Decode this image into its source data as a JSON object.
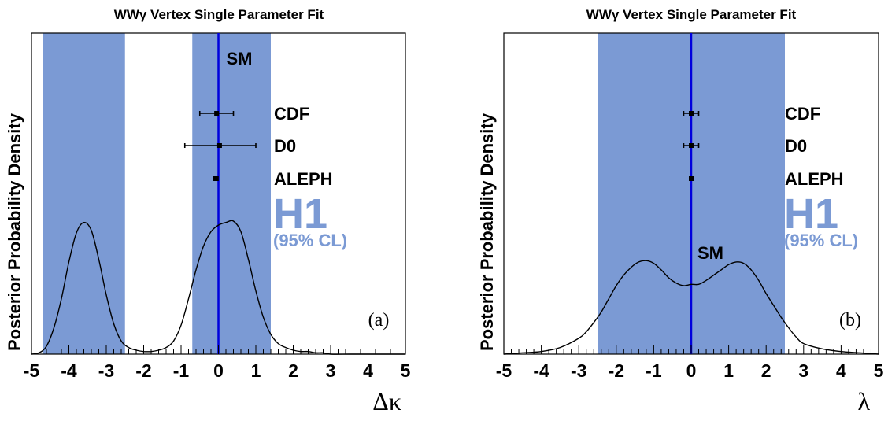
{
  "chart_data": [
    {
      "type": "line",
      "title": "WWγ Vertex Single Parameter Fit",
      "ylabel": "Posterior Probability Density",
      "xlabel": "Δκ",
      "panel_label": "(a)",
      "xlim": [
        -5,
        5
      ],
      "xticks": [
        "-5",
        "-4",
        "-3",
        "-2",
        "-1",
        "0",
        "1",
        "2",
        "3",
        "4",
        "5"
      ],
      "bands": [
        [
          -4.7,
          -2.5
        ],
        [
          -0.7,
          1.4
        ]
      ],
      "sm_label": "SM",
      "sm_x": 0,
      "sm_label_pos": "top",
      "band_label": "H1",
      "band_sublabel": "(95% CL)",
      "band_color": "#7b9ad4",
      "sm_line_color": "#0000dd",
      "measurements": [
        {
          "name": "CDF",
          "center": -0.05,
          "low": -0.5,
          "high": 0.4
        },
        {
          "name": "D0",
          "center": 0.03,
          "low": -0.9,
          "high": 1.0
        },
        {
          "name": "ALEPH",
          "center": -0.07,
          "low": -0.13,
          "high": -0.01
        }
      ],
      "curve": {
        "x": [
          -5.0,
          -4.8,
          -4.6,
          -4.4,
          -4.2,
          -4.0,
          -3.8,
          -3.6,
          -3.4,
          -3.2,
          -3.0,
          -2.8,
          -2.6,
          -2.4,
          -2.2,
          -2.0,
          -1.8,
          -1.6,
          -1.4,
          -1.2,
          -1.0,
          -0.8,
          -0.6,
          -0.4,
          -0.2,
          0.0,
          0.2,
          0.4,
          0.6,
          0.8,
          1.0,
          1.2,
          1.4,
          1.6,
          1.8,
          2.0,
          2.2,
          2.4,
          2.6,
          2.8,
          3.0,
          3.5,
          4.0,
          4.5,
          5.0
        ],
        "y": [
          0.0,
          0.01,
          0.06,
          0.2,
          0.42,
          0.7,
          0.92,
          1.0,
          0.94,
          0.72,
          0.45,
          0.23,
          0.1,
          0.05,
          0.03,
          0.02,
          0.02,
          0.03,
          0.05,
          0.1,
          0.22,
          0.42,
          0.64,
          0.82,
          0.93,
          0.98,
          1.0,
          1.01,
          0.93,
          0.72,
          0.48,
          0.28,
          0.15,
          0.08,
          0.05,
          0.03,
          0.02,
          0.02,
          0.01,
          0.01,
          0.0,
          0.0,
          0.0,
          0.0,
          0.0
        ]
      }
    },
    {
      "type": "line",
      "title": "WWγ Vertex Single Parameter Fit",
      "ylabel": "Posterior Probability Density",
      "xlabel": "λ",
      "panel_label": "(b)",
      "xlim": [
        -5,
        5
      ],
      "xticks": [
        "-5",
        "-4",
        "-3",
        "-2",
        "-1",
        "0",
        "1",
        "2",
        "3",
        "4",
        "5"
      ],
      "bands": [
        [
          -2.5,
          2.5
        ]
      ],
      "sm_label": "SM",
      "sm_x": 0,
      "sm_label_pos": "middle",
      "band_label": "H1",
      "band_sublabel": "(95% CL)",
      "band_color": "#7b9ad4",
      "sm_line_color": "#0000dd",
      "measurements": [
        {
          "name": "CDF",
          "center": 0.0,
          "low": -0.2,
          "high": 0.2
        },
        {
          "name": "D0",
          "center": 0.0,
          "low": -0.2,
          "high": 0.2
        },
        {
          "name": "ALEPH",
          "center": 0.0,
          "low": -0.02,
          "high": 0.02
        }
      ],
      "curve": {
        "x": [
          -5.0,
          -4.5,
          -4.0,
          -3.5,
          -3.0,
          -2.8,
          -2.6,
          -2.4,
          -2.2,
          -2.0,
          -1.8,
          -1.6,
          -1.4,
          -1.2,
          -1.0,
          -0.8,
          -0.6,
          -0.4,
          -0.2,
          0.0,
          0.2,
          0.4,
          0.6,
          0.8,
          1.0,
          1.2,
          1.4,
          1.6,
          1.8,
          2.0,
          2.2,
          2.4,
          2.6,
          2.8,
          3.0,
          3.5,
          4.0,
          4.5,
          5.0
        ],
        "y": [
          0.0,
          0.01,
          0.02,
          0.05,
          0.12,
          0.17,
          0.24,
          0.32,
          0.42,
          0.52,
          0.6,
          0.66,
          0.7,
          0.71,
          0.69,
          0.64,
          0.58,
          0.54,
          0.52,
          0.53,
          0.53,
          0.56,
          0.6,
          0.64,
          0.68,
          0.7,
          0.69,
          0.64,
          0.56,
          0.46,
          0.37,
          0.28,
          0.2,
          0.13,
          0.08,
          0.04,
          0.02,
          0.01,
          0.0
        ]
      }
    }
  ]
}
